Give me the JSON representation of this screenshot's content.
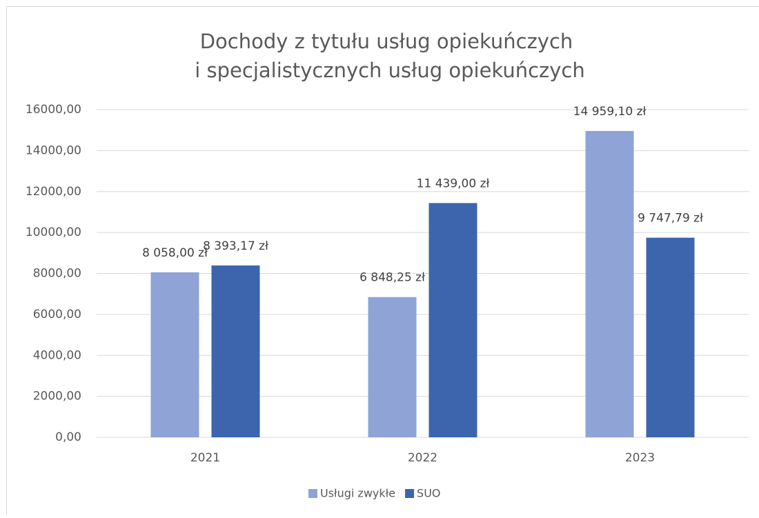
{
  "chart_data": {
    "type": "bar",
    "title": [
      "Dochody z tytułu usług opiekuńczych",
      "i specjalistycznych usług opiekuńczych"
    ],
    "categories": [
      "2021",
      "2022",
      "2023"
    ],
    "series": [
      {
        "name": "Usługi zwykłe",
        "color": "#8fa3d6",
        "values": [
          8058.0,
          6848.25,
          14959.1
        ],
        "value_labels": [
          "8 058,00 zł",
          "6 848,25 zł",
          "14 959,10 zł"
        ]
      },
      {
        "name": "SUO",
        "color": "#3d65ae",
        "values": [
          8393.17,
          11439.0,
          9747.79
        ],
        "value_labels": [
          "8 393,17 zł",
          "11 439,00 zł",
          "9 747,79 zł"
        ]
      }
    ],
    "ylim": [
      0,
      16000
    ],
    "yticks": [
      {
        "value": 0,
        "label": "0,00"
      },
      {
        "value": 2000,
        "label": "2000,00"
      },
      {
        "value": 4000,
        "label": "4000,00"
      },
      {
        "value": 6000,
        "label": "6000,00"
      },
      {
        "value": 8000,
        "label": "8000,00"
      },
      {
        "value": 10000,
        "label": "10000,00"
      },
      {
        "value": 12000,
        "label": "12000,00"
      },
      {
        "value": 14000,
        "label": "14000,00"
      },
      {
        "value": 16000,
        "label": "16000,00"
      }
    ],
    "grid": true,
    "legend": "bottom"
  }
}
